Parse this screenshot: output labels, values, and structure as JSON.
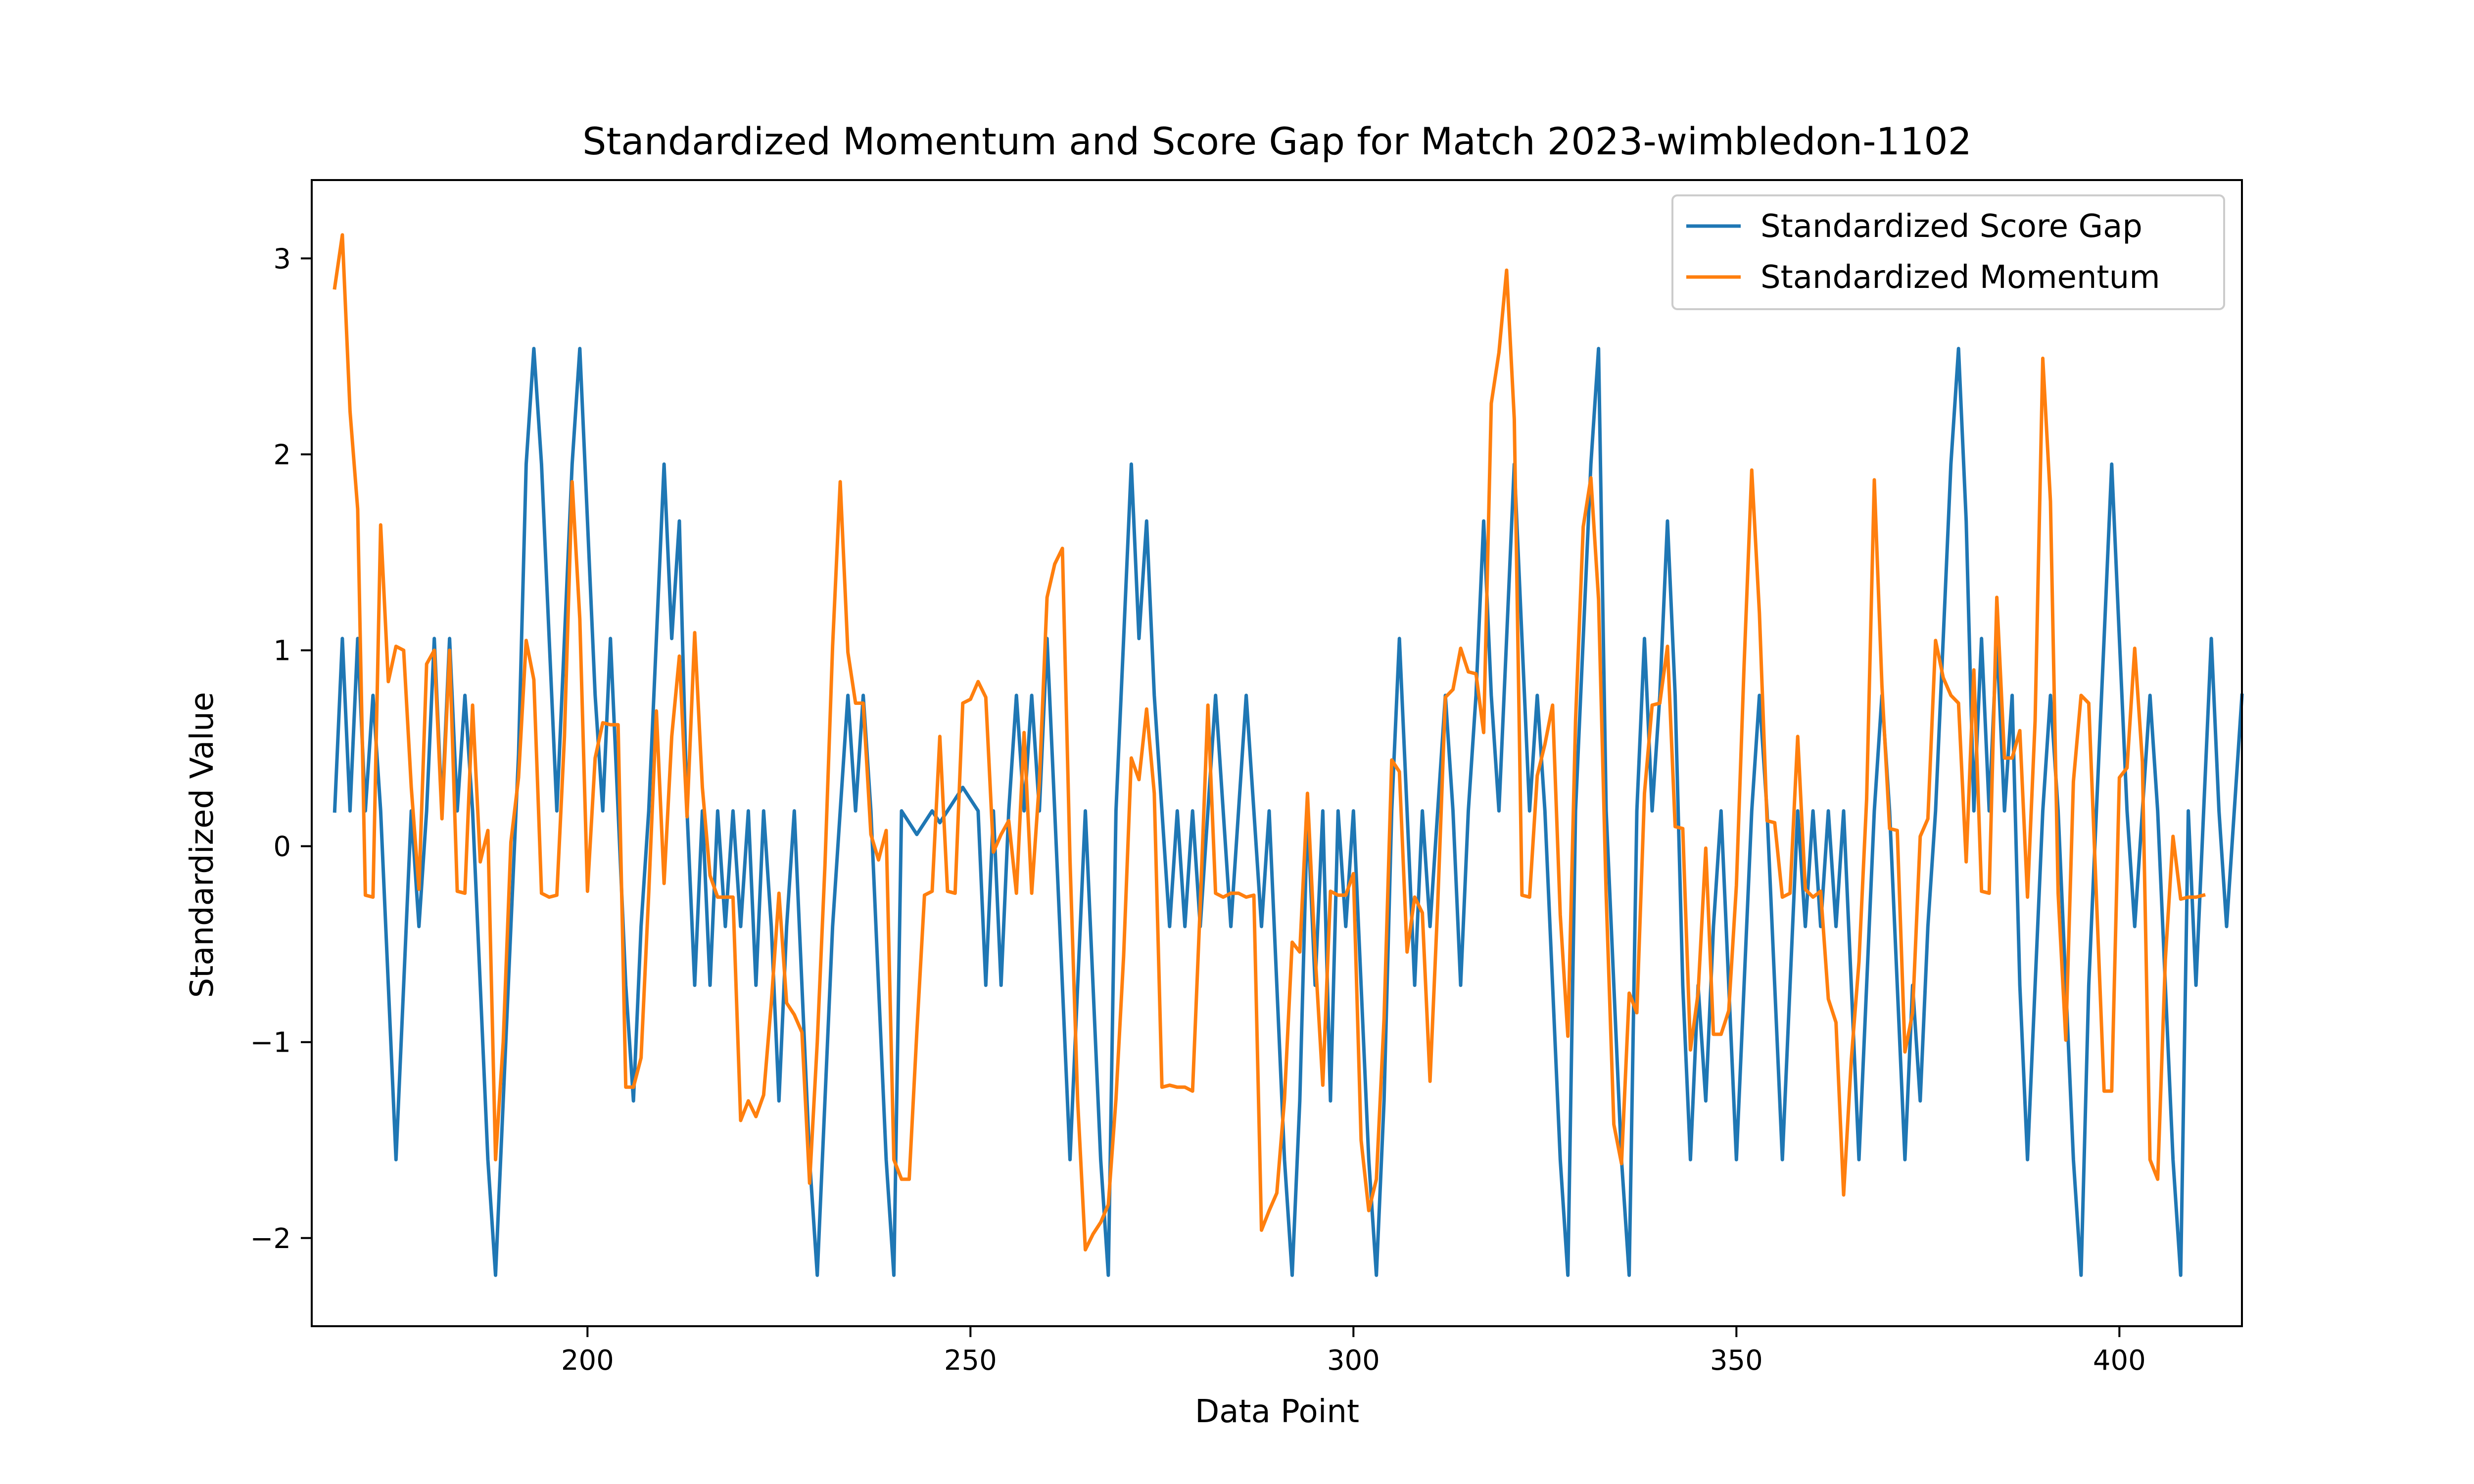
{
  "chart_data": {
    "type": "line",
    "title": "Standardized Momentum and Score Gap for Match 2023-wimbledon-1102",
    "xlabel": "Data Point",
    "ylabel": "Standardized Value",
    "xlim": [
      164,
      416
    ],
    "ylim": [
      -2.45,
      3.4
    ],
    "x_ticks": [
      200,
      250,
      300,
      350,
      400
    ],
    "y_ticks": [
      -2,
      -1,
      0,
      1,
      2,
      3
    ],
    "x_tick_labels": [
      "200",
      "250",
      "300",
      "350",
      "400"
    ],
    "y_tick_labels": [
      "−2",
      "−1",
      "0",
      "1",
      "2",
      "3"
    ],
    "legend_position": "upper right",
    "grid": false,
    "x_start": 167,
    "series": [
      {
        "name": "Standardized Score Gap",
        "color": "#1f77b4",
        "values": [
          0.18,
          1.06,
          0.18,
          1.06,
          0.18,
          0.77,
          0.18,
          -0.71,
          -1.6,
          -0.71,
          0.18,
          -0.41,
          0.18,
          1.06,
          0.18,
          1.06,
          0.18,
          0.77,
          0.18,
          -0.71,
          -1.6,
          -2.19,
          -1.3,
          -0.41,
          0.47,
          1.95,
          2.54,
          1.95,
          1.06,
          0.18,
          1.06,
          1.95,
          2.54,
          1.66,
          0.77,
          0.18,
          1.06,
          0.18,
          -0.71,
          -1.3,
          -0.41,
          0.18,
          1.06,
          1.95,
          1.06,
          1.66,
          0.18,
          -0.71,
          0.18,
          -0.71,
          0.18,
          -0.41,
          0.18,
          -0.41,
          0.18,
          -0.71,
          0.18,
          -0.41,
          -1.3,
          -0.41,
          0.18,
          -0.71,
          -1.6,
          -2.19,
          -1.3,
          -0.41,
          0.18,
          0.77,
          0.18,
          0.77,
          0.18,
          -0.71,
          -1.6,
          -2.19,
          0.18,
          0.12,
          0.06,
          0.12,
          0.18,
          0.12,
          0.18,
          0.24,
          0.3,
          0.24,
          0.18,
          -0.71,
          0.18,
          -0.71,
          0.18,
          0.77,
          0.18,
          0.77,
          0.18,
          1.06,
          0.18,
          -0.71,
          -1.6,
          -0.71,
          0.18,
          -0.71,
          -1.6,
          -2.19,
          0.18,
          1.06,
          1.95,
          1.06,
          1.66,
          0.77,
          0.18,
          -0.41,
          0.18,
          -0.41,
          0.18,
          -0.41,
          0.18,
          0.77,
          0.18,
          -0.41,
          0.18,
          0.77,
          0.18,
          -0.41,
          0.18,
          -0.71,
          -1.6,
          -2.19,
          -1.3,
          0.18,
          -0.71,
          0.18,
          -1.3,
          0.18,
          -0.41,
          0.18,
          -0.71,
          -1.6,
          -2.19,
          -1.3,
          0.18,
          1.06,
          0.18,
          -0.71,
          0.18,
          -0.41,
          0.18,
          0.77,
          0.18,
          -0.71,
          0.18,
          0.77,
          1.66,
          0.77,
          0.18,
          1.06,
          1.95,
          1.06,
          0.18,
          0.77,
          0.18,
          -0.71,
          -1.6,
          -2.19,
          0.18,
          1.06,
          1.95,
          2.54,
          0.18,
          -0.71,
          -1.6,
          -2.19,
          0.18,
          1.06,
          0.18,
          0.77,
          1.66,
          0.77,
          -0.71,
          -1.6,
          -0.71,
          -1.3,
          -0.41,
          0.18,
          -0.71,
          -1.6,
          -0.71,
          0.18,
          0.77,
          0.18,
          -0.71,
          -1.6,
          -0.71,
          0.18,
          -0.41,
          0.18,
          -0.41,
          0.18,
          -0.41,
          0.18,
          -0.71,
          -1.6,
          -0.71,
          0.18,
          0.77,
          0.18,
          -0.71,
          -1.6,
          -0.71,
          -1.3,
          -0.41,
          0.18,
          1.06,
          1.95,
          2.54,
          1.66,
          0.18,
          1.06,
          0.18,
          1.06,
          0.18,
          0.77,
          -0.71,
          -1.6,
          -0.71,
          0.18,
          0.77,
          0.18,
          -0.71,
          -1.6,
          -2.19,
          -0.71,
          0.18,
          1.06,
          1.95,
          1.06,
          0.18,
          -0.41,
          0.18,
          0.77,
          0.18,
          -0.71,
          -1.6,
          -2.19,
          0.18,
          -0.71,
          0.18,
          1.06,
          0.18,
          -0.41,
          0.18,
          0.77
        ]
      },
      {
        "name": "Standardized Momentum",
        "color": "#ff7f0e",
        "values": [
          2.85,
          3.12,
          2.22,
          1.72,
          -0.25,
          -0.26,
          1.64,
          0.84,
          1.02,
          1.0,
          0.3,
          -0.22,
          0.93,
          1.0,
          0.14,
          1.0,
          -0.23,
          -0.24,
          0.72,
          -0.08,
          0.08,
          -1.6,
          -1.0,
          0.02,
          0.35,
          1.05,
          0.85,
          -0.24,
          -0.26,
          -0.25,
          0.56,
          1.86,
          1.16,
          -0.23,
          0.45,
          0.63,
          0.62,
          0.62,
          -1.23,
          -1.23,
          -1.08,
          -0.24,
          0.69,
          -0.19,
          0.56,
          0.97,
          0.15,
          1.09,
          0.3,
          -0.15,
          -0.26,
          -0.26,
          -0.26,
          -1.4,
          -1.3,
          -1.38,
          -1.27,
          -0.8,
          -0.24,
          -0.8,
          -0.86,
          -0.95,
          -1.72,
          -1.0,
          -0.1,
          1.02,
          1.86,
          0.99,
          0.73,
          0.73,
          0.06,
          -0.07,
          0.08,
          -1.6,
          -1.7,
          -1.7,
          -0.95,
          -0.25,
          -0.23,
          0.56,
          -0.23,
          -0.24,
          0.73,
          0.75,
          0.84,
          0.76,
          -0.03,
          0.06,
          0.13,
          -0.24,
          0.58,
          -0.24,
          0.33,
          1.27,
          1.44,
          1.52,
          -0.07,
          -1.3,
          -2.06,
          -1.98,
          -1.92,
          -1.83,
          -1.29,
          -0.56,
          0.45,
          0.34,
          0.7,
          0.27,
          -1.23,
          -1.22,
          -1.23,
          -1.23,
          -1.25,
          -0.3,
          0.72,
          -0.24,
          -0.26,
          -0.24,
          -0.24,
          -0.26,
          -0.25,
          -1.96,
          -1.86,
          -1.77,
          -1.29,
          -0.49,
          -0.54,
          0.27,
          -0.55,
          -1.22,
          -0.23,
          -0.25,
          -0.25,
          -0.14,
          -1.5,
          -1.86,
          -1.7,
          -0.88,
          0.44,
          0.38,
          -0.54,
          -0.26,
          -0.34,
          -1.2,
          -0.3,
          0.76,
          0.8,
          1.01,
          0.89,
          0.88,
          0.58,
          2.26,
          2.52,
          2.94,
          2.18,
          -0.25,
          -0.26,
          0.36,
          0.52,
          0.72,
          -0.35,
          -0.97,
          0.64,
          1.63,
          1.88,
          1.26,
          -0.25,
          -1.42,
          -1.62,
          -0.75,
          -0.85,
          0.27,
          0.72,
          0.73,
          1.02,
          0.1,
          0.09,
          -1.04,
          -0.75,
          -0.01,
          -0.96,
          -0.96,
          -0.84,
          -0.2,
          0.92,
          1.92,
          1.19,
          0.13,
          0.12,
          -0.26,
          -0.24,
          0.56,
          -0.22,
          -0.26,
          -0.23,
          -0.78,
          -0.9,
          -1.78,
          -1.09,
          -0.59,
          0.24,
          1.87,
          0.82,
          0.09,
          0.08,
          -1.05,
          -0.85,
          0.05,
          0.14,
          1.05,
          0.86,
          0.77,
          0.73,
          -0.08,
          0.9,
          -0.23,
          -0.24,
          1.27,
          0.45,
          0.45,
          0.59,
          -0.26,
          0.64,
          2.49,
          1.76,
          -0.24,
          -0.99,
          0.33,
          0.77,
          0.73,
          -0.26,
          -1.25,
          -1.25,
          0.35,
          0.4,
          1.01,
          0.43,
          -1.6,
          -1.7,
          -0.58,
          0.05,
          -0.27,
          -0.26,
          -0.26,
          -0.25
        ]
      }
    ]
  }
}
